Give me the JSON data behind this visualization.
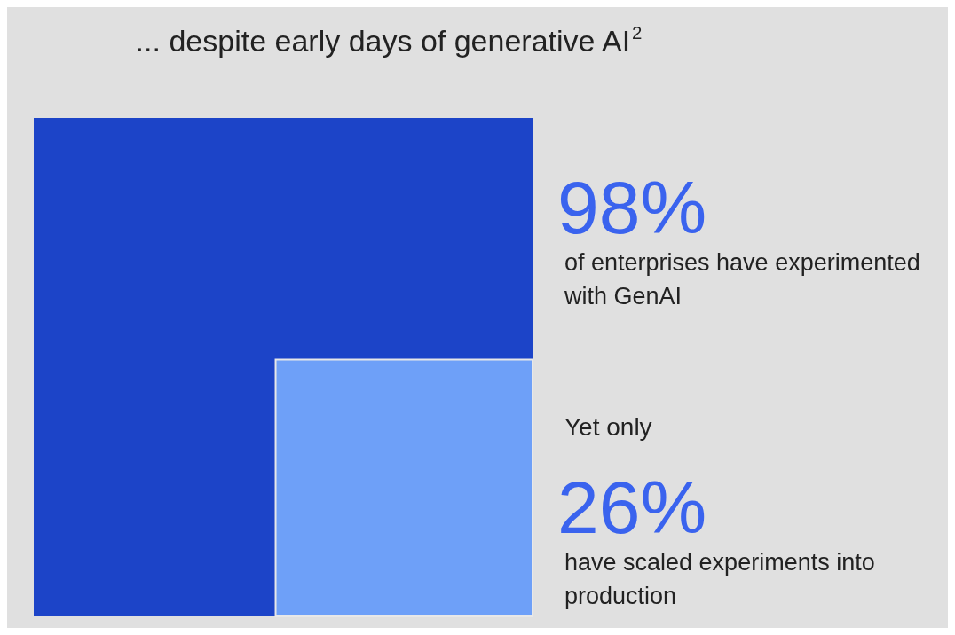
{
  "chart_data": {
    "type": "other",
    "title": "... despite early days of generative AI$^{2}$",
    "categories": [
      "of enterprises have experimented with GenAI",
      "have scaled experiments into production"
    ],
    "values": [
      98,
      26
    ],
    "colors": [
      "#1c44c8",
      "#6ea0f8"
    ],
    "value_labels": [
      "98%",
      "26%"
    ],
    "annotations": [
      "Yet only"
    ]
  }
}
